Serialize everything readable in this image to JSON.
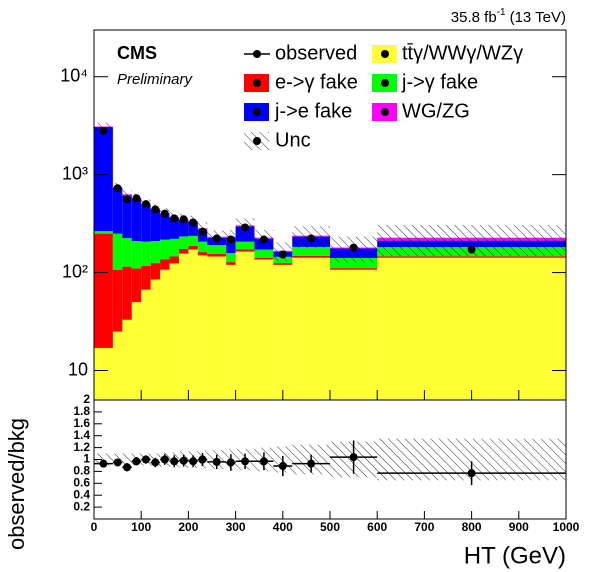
{
  "chart_data": {
    "type": "stacked_histogram",
    "lumi": {
      "text": "35.8 fb",
      "superscript": "-1",
      "energy": "(13 TeV)"
    },
    "cms_label": "CMS",
    "cms_extra": "Preliminary",
    "x_label": "HT (GeV)",
    "bins": [
      0,
      40,
      60,
      80,
      100,
      120,
      140,
      160,
      180,
      200,
      220,
      240,
      280,
      300,
      340,
      380,
      420,
      500,
      600,
      1000
    ],
    "xlim": [
      0,
      1000
    ],
    "xticks": [
      0,
      100,
      200,
      300,
      400,
      500,
      600,
      700,
      800,
      900,
      1000
    ],
    "log_y": true,
    "ylim": [
      5,
      30000
    ],
    "yticks": [
      10,
      {
        "value": 100,
        "label": "10²"
      },
      {
        "value": 1000,
        "label": "10³"
      },
      {
        "value": 10000,
        "label": "10⁴"
      }
    ],
    "series": [
      {
        "name": "tt̄γ/WWγ/WZγ",
        "color": "#ffff33",
        "values": [
          17,
          25,
          33,
          50,
          67,
          85,
          107,
          124,
          156,
          172,
          150,
          146,
          120,
          164,
          136,
          120,
          142,
          107,
          142
        ]
      },
      {
        "name": "e->γ fake",
        "color": "#ff0000",
        "values": [
          233,
          82,
          82,
          60,
          50,
          40,
          30,
          22,
          18,
          15,
          12,
          10,
          8,
          8,
          6,
          5,
          6,
          4,
          5
        ]
      },
      {
        "name": "j->γ fake",
        "color": "#00ff00",
        "values": [
          15,
          143,
          110,
          100,
          90,
          85,
          80,
          75,
          60,
          50,
          45,
          35,
          30,
          35,
          30,
          20,
          35,
          30,
          35
        ]
      },
      {
        "name": "j->e fake",
        "color": "#0000ff",
        "values": [
          2800,
          480,
          390,
          360,
          290,
          230,
          180,
          140,
          110,
          90,
          70,
          35,
          70,
          90,
          50,
          18,
          50,
          35,
          30
        ]
      },
      {
        "name": "WG/ZG",
        "color": "#ff00ff",
        "values": [
          35,
          20,
          15,
          12,
          10,
          10,
          9,
          8,
          8,
          7,
          6,
          6,
          5,
          6,
          5,
          4,
          5,
          4,
          15
        ]
      }
    ],
    "observed": {
      "name": "observed",
      "values": [
        2800,
        727,
        560,
        575,
        500,
        442,
        400,
        358,
        350,
        325,
        262,
        223,
        218,
        289,
        218,
        153,
        223,
        180,
        172
      ]
    },
    "uncertainty": {
      "name": "Unc",
      "values": [
        0.1,
        0.1,
        0.1,
        0.1,
        0.1,
        0.1,
        0.12,
        0.12,
        0.14,
        0.14,
        0.15,
        0.16,
        0.17,
        0.18,
        0.2,
        0.22,
        0.25,
        0.3,
        0.35
      ]
    },
    "ratio": {
      "y_label": "observed/bkg",
      "ylim": [
        0,
        2
      ],
      "yticks": [
        0.2,
        0.4,
        0.6,
        0.8,
        1,
        1.2,
        1.4,
        1.6,
        1.8,
        2
      ],
      "values": [
        0.93,
        0.95,
        0.87,
        0.97,
        1.0,
        0.95,
        1.0,
        0.97,
        0.98,
        0.97,
        1.0,
        0.96,
        0.95,
        0.97,
        0.97,
        0.89,
        0.93,
        1.04,
        0.77
      ],
      "errors": [
        0.05,
        0.06,
        0.07,
        0.07,
        0.07,
        0.08,
        0.09,
        0.1,
        0.1,
        0.1,
        0.11,
        0.12,
        0.14,
        0.13,
        0.15,
        0.17,
        0.15,
        0.28,
        0.2
      ]
    }
  }
}
